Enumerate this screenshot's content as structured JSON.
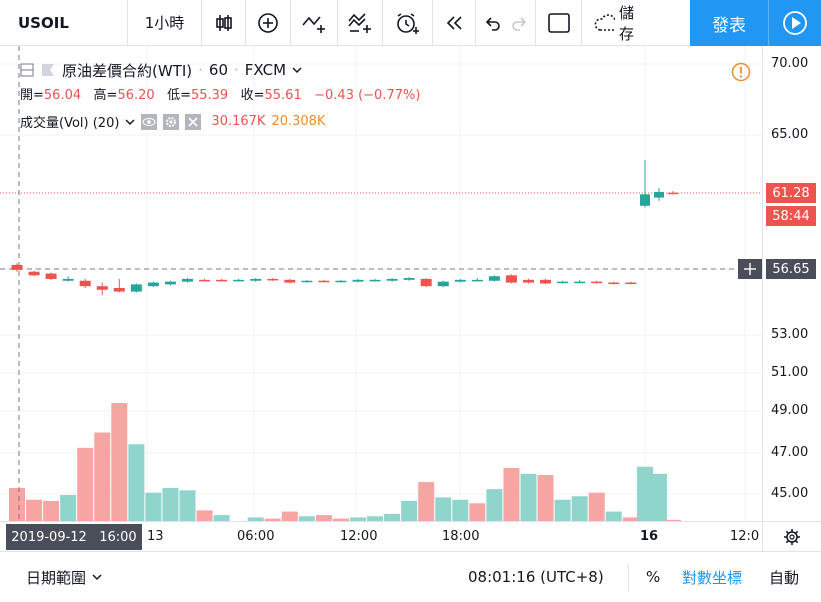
{
  "toolbar": {
    "symbol": "USOIL",
    "interval": "1小時",
    "publish_label": "發表",
    "save_label": "儲存"
  },
  "legend": {
    "title": "原油差價合約(WTI)",
    "interval": "60",
    "exchange": "FXCM",
    "open_label": "開=",
    "open": "56.04",
    "high_label": "高=",
    "high": "56.20",
    "low_label": "低=",
    "low": "55.39",
    "close_label": "收=",
    "close": "55.61",
    "change": "−0.43 (−0.77%)",
    "volume_label": "成交量(Vol) (20)",
    "vol_value": "30.167K",
    "vol_ma": "20.308K"
  },
  "colors": {
    "up": "#26a69a",
    "down": "#ef5350",
    "up_vol": "#8fd5cc",
    "down_vol": "#f6a5a3",
    "accent": "#2196f3"
  },
  "price_scale": [
    "70.00",
    "65.00",
    "53.00",
    "51.00",
    "49.00",
    "47.00",
    "45.00"
  ],
  "price_tags": {
    "last": "61.28",
    "countdown": "58:44",
    "crosshair": "56.65"
  },
  "time_scale": [
    "13",
    "06:00",
    "12:00",
    "18:00",
    "16",
    "12:0"
  ],
  "crosshair_time": "2019-09-12   16:00",
  "bottom": {
    "date_range": "日期範圍",
    "clock": "08:01:16 (UTC+8)",
    "percent": "%",
    "log": "對數坐標",
    "auto": "自動"
  },
  "chart_data": {
    "type": "candlestick",
    "series": [
      {
        "name": "price",
        "candles": [
          {
            "o": 56.9,
            "c": 56.6,
            "h": 57.0,
            "l": 56.5
          },
          {
            "o": 56.5,
            "c": 56.3,
            "h": 56.55,
            "l": 56.25
          },
          {
            "o": 56.4,
            "c": 56.1,
            "h": 56.45,
            "l": 56.05
          },
          {
            "o": 56.0,
            "c": 56.1,
            "h": 56.25,
            "l": 55.95
          },
          {
            "o": 56.0,
            "c": 55.7,
            "h": 56.1,
            "l": 55.6
          },
          {
            "o": 55.7,
            "c": 55.5,
            "h": 55.9,
            "l": 55.2
          },
          {
            "o": 55.6,
            "c": 55.4,
            "h": 56.1,
            "l": 55.35
          },
          {
            "o": 55.4,
            "c": 55.8,
            "h": 55.85,
            "l": 55.35
          },
          {
            "o": 55.7,
            "c": 55.9,
            "h": 55.95,
            "l": 55.65
          },
          {
            "o": 55.8,
            "c": 55.95,
            "h": 56.0,
            "l": 55.75
          },
          {
            "o": 55.95,
            "c": 56.1,
            "h": 56.15,
            "l": 55.9
          },
          {
            "o": 56.05,
            "c": 56.0,
            "h": 56.1,
            "l": 55.95
          },
          {
            "o": 56.05,
            "c": 56.0,
            "h": 56.1,
            "l": 55.95
          },
          {
            "o": 56.0,
            "c": 56.05,
            "h": 56.1,
            "l": 55.95
          },
          {
            "o": 56.0,
            "c": 56.1,
            "h": 56.15,
            "l": 55.95
          },
          {
            "o": 56.1,
            "c": 56.05,
            "h": 56.15,
            "l": 56.0
          },
          {
            "o": 56.05,
            "c": 55.9,
            "h": 56.1,
            "l": 55.85
          },
          {
            "o": 55.95,
            "c": 56.0,
            "h": 56.05,
            "l": 55.9
          },
          {
            "o": 56.0,
            "c": 55.95,
            "h": 56.05,
            "l": 55.9
          },
          {
            "o": 55.95,
            "c": 56.0,
            "h": 56.05,
            "l": 55.9
          },
          {
            "o": 55.95,
            "c": 56.05,
            "h": 56.1,
            "l": 55.9
          },
          {
            "o": 56.0,
            "c": 56.05,
            "h": 56.1,
            "l": 55.95
          },
          {
            "o": 56.0,
            "c": 56.1,
            "h": 56.15,
            "l": 55.95
          },
          {
            "o": 56.05,
            "c": 56.15,
            "h": 56.2,
            "l": 56.0
          },
          {
            "o": 56.1,
            "c": 55.7,
            "h": 56.15,
            "l": 55.65
          },
          {
            "o": 55.7,
            "c": 55.95,
            "h": 56.0,
            "l": 55.65
          },
          {
            "o": 55.95,
            "c": 56.05,
            "h": 56.1,
            "l": 55.9
          },
          {
            "o": 56.0,
            "c": 56.05,
            "h": 56.15,
            "l": 55.95
          },
          {
            "o": 56.0,
            "c": 56.25,
            "h": 56.3,
            "l": 55.95
          },
          {
            "o": 56.3,
            "c": 55.9,
            "h": 56.35,
            "l": 55.85
          },
          {
            "o": 56.05,
            "c": 55.9,
            "h": 56.1,
            "l": 55.85
          },
          {
            "o": 56.05,
            "c": 55.85,
            "h": 56.1,
            "l": 55.8
          },
          {
            "o": 55.9,
            "c": 55.95,
            "h": 56.0,
            "l": 55.85
          },
          {
            "o": 55.95,
            "c": 55.95,
            "h": 56.05,
            "l": 55.9
          },
          {
            "o": 55.95,
            "c": 55.9,
            "h": 56.0,
            "l": 55.85
          },
          {
            "o": 55.9,
            "c": 55.85,
            "h": 55.95,
            "l": 55.8
          },
          {
            "o": 55.9,
            "c": 55.85,
            "h": 55.95,
            "l": 55.8
          },
          {
            "o": 60.5,
            "c": 61.2,
            "h": 63.4,
            "l": 60.4
          },
          {
            "o": 61.0,
            "c": 61.35,
            "h": 61.6,
            "l": 60.8
          },
          {
            "o": 61.3,
            "c": 61.28,
            "h": 61.4,
            "l": 61.2
          }
        ]
      }
    ],
    "volume": [
      {
        "v": 28,
        "dir": "down"
      },
      {
        "v": 18,
        "dir": "down"
      },
      {
        "v": 17,
        "dir": "down"
      },
      {
        "v": 22,
        "dir": "up"
      },
      {
        "v": 62,
        "dir": "down"
      },
      {
        "v": 75,
        "dir": "down"
      },
      {
        "v": 100,
        "dir": "down"
      },
      {
        "v": 65,
        "dir": "up"
      },
      {
        "v": 24,
        "dir": "up"
      },
      {
        "v": 28,
        "dir": "up"
      },
      {
        "v": 26,
        "dir": "up"
      },
      {
        "v": 9,
        "dir": "down"
      },
      {
        "v": 5,
        "dir": "up"
      },
      {
        "v": 0,
        "dir": "up"
      },
      {
        "v": 3,
        "dir": "up"
      },
      {
        "v": 2,
        "dir": "down"
      },
      {
        "v": 8,
        "dir": "down"
      },
      {
        "v": 4,
        "dir": "up"
      },
      {
        "v": 5,
        "dir": "down"
      },
      {
        "v": 2,
        "dir": "down"
      },
      {
        "v": 3,
        "dir": "up"
      },
      {
        "v": 4,
        "dir": "up"
      },
      {
        "v": 6,
        "dir": "up"
      },
      {
        "v": 17,
        "dir": "up"
      },
      {
        "v": 33,
        "dir": "down"
      },
      {
        "v": 20,
        "dir": "up"
      },
      {
        "v": 18,
        "dir": "up"
      },
      {
        "v": 15,
        "dir": "down"
      },
      {
        "v": 27,
        "dir": "up"
      },
      {
        "v": 45,
        "dir": "down"
      },
      {
        "v": 40,
        "dir": "up"
      },
      {
        "v": 39,
        "dir": "down"
      },
      {
        "v": 18,
        "dir": "up"
      },
      {
        "v": 21,
        "dir": "up"
      },
      {
        "v": 24,
        "dir": "down"
      },
      {
        "v": 8,
        "dir": "up"
      },
      {
        "v": 3,
        "dir": "down"
      },
      {
        "v": 46,
        "dir": "up"
      },
      {
        "v": 40,
        "dir": "up"
      },
      {
        "v": 1,
        "dir": "down"
      }
    ],
    "ylim": [
      44.0,
      71.0
    ],
    "grid": true
  }
}
